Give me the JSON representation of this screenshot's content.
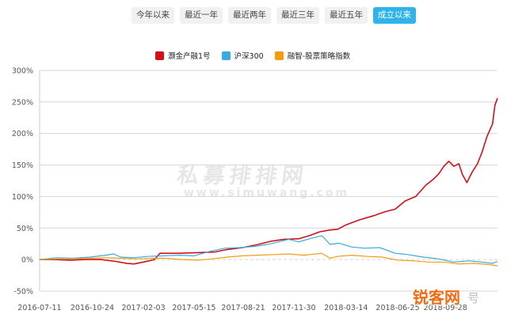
{
  "tabs": [
    {
      "label": "今年以来",
      "active": false
    },
    {
      "label": "最近一年",
      "active": false
    },
    {
      "label": "最近两年",
      "active": false
    },
    {
      "label": "最近三年",
      "active": false
    },
    {
      "label": "最近五年",
      "active": false
    },
    {
      "label": "成立以来",
      "active": true
    }
  ],
  "watermark": {
    "text": "私募排排网",
    "url": "www.simuwang.com"
  },
  "logo": {
    "text": "锐客网",
    "sub": "号"
  },
  "chart_data": {
    "type": "line",
    "ylim": [
      -50,
      300
    ],
    "yticks": [
      -50,
      0,
      50,
      100,
      150,
      200,
      250,
      300
    ],
    "ytick_labels": [
      "-50%",
      "0%",
      "50%",
      "100%",
      "150%",
      "200%",
      "250%",
      "300%"
    ],
    "xlim": [
      "2016-07-11",
      "2019-01-10"
    ],
    "xtick_labels": [
      "2016-07-11",
      "2016-10-24",
      "2017-02-03",
      "2017-05-15",
      "2017-08-21",
      "2017-11-30",
      "2018-03-14",
      "2018-06-25",
      "2018-09-28"
    ],
    "grid": true,
    "legend_position": "top",
    "series": [
      {
        "name": "灏金产融1号",
        "color": "#d0101b",
        "points": [
          [
            "2016-07-11",
            0
          ],
          [
            "2016-08-10",
            0
          ],
          [
            "2016-09-10",
            -1
          ],
          [
            "2016-10-10",
            0
          ],
          [
            "2016-11-10",
            0
          ],
          [
            "2016-12-10",
            -3
          ],
          [
            "2017-01-01",
            -6
          ],
          [
            "2017-01-15",
            -7
          ],
          [
            "2017-02-03",
            -4
          ],
          [
            "2017-02-25",
            0
          ],
          [
            "2017-03-08",
            10
          ],
          [
            "2017-04-15",
            10
          ],
          [
            "2017-05-20",
            11
          ],
          [
            "2017-06-25",
            12
          ],
          [
            "2017-07-20",
            16
          ],
          [
            "2017-08-20",
            19
          ],
          [
            "2017-09-20",
            24
          ],
          [
            "2017-10-15",
            29
          ],
          [
            "2017-11-10",
            32
          ],
          [
            "2017-12-10",
            33
          ],
          [
            "2017-12-31",
            38
          ],
          [
            "2018-01-20",
            44
          ],
          [
            "2018-02-10",
            47
          ],
          [
            "2018-02-25",
            48
          ],
          [
            "2018-03-14",
            55
          ],
          [
            "2018-04-10",
            63
          ],
          [
            "2018-05-10",
            70
          ],
          [
            "2018-05-31",
            76
          ],
          [
            "2018-06-20",
            80
          ],
          [
            "2018-07-10",
            93
          ],
          [
            "2018-07-31",
            100
          ],
          [
            "2018-08-20",
            118
          ],
          [
            "2018-09-05",
            128
          ],
          [
            "2018-09-15",
            136
          ],
          [
            "2018-09-25",
            148
          ],
          [
            "2018-10-05",
            156
          ],
          [
            "2018-10-15",
            148
          ],
          [
            "2018-10-25",
            152
          ],
          [
            "2018-11-01",
            135
          ],
          [
            "2018-11-10",
            122
          ],
          [
            "2018-11-20",
            138
          ],
          [
            "2018-12-01",
            152
          ],
          [
            "2018-12-10",
            170
          ],
          [
            "2018-12-20",
            195
          ],
          [
            "2018-12-31",
            215
          ],
          [
            "2019-01-05",
            245
          ],
          [
            "2019-01-10",
            256
          ]
        ]
      },
      {
        "name": "沪深300",
        "color": "#3aa9e0",
        "points": [
          [
            "2016-07-11",
            0
          ],
          [
            "2016-08-15",
            3
          ],
          [
            "2016-09-15",
            2
          ],
          [
            "2016-10-20",
            4
          ],
          [
            "2016-11-20",
            7
          ],
          [
            "2016-12-05",
            9
          ],
          [
            "2016-12-20",
            4
          ],
          [
            "2017-01-15",
            3
          ],
          [
            "2017-02-10",
            5
          ],
          [
            "2017-03-15",
            6
          ],
          [
            "2017-04-15",
            7
          ],
          [
            "2017-05-15",
            6
          ],
          [
            "2017-06-15",
            13
          ],
          [
            "2017-07-15",
            18
          ],
          [
            "2017-08-15",
            19
          ],
          [
            "2017-09-15",
            21
          ],
          [
            "2017-10-15",
            25
          ],
          [
            "2017-11-20",
            32
          ],
          [
            "2017-12-10",
            28
          ],
          [
            "2017-12-31",
            33
          ],
          [
            "2018-01-25",
            38
          ],
          [
            "2018-02-10",
            24
          ],
          [
            "2018-02-28",
            26
          ],
          [
            "2018-03-25",
            20
          ],
          [
            "2018-04-20",
            18
          ],
          [
            "2018-05-20",
            19
          ],
          [
            "2018-06-20",
            10
          ],
          [
            "2018-07-15",
            8
          ],
          [
            "2018-08-15",
            4
          ],
          [
            "2018-09-15",
            1
          ],
          [
            "2018-10-15",
            -4
          ],
          [
            "2018-11-15",
            -2
          ],
          [
            "2018-12-10",
            -4
          ],
          [
            "2018-12-31",
            -6
          ],
          [
            "2019-01-10",
            -3
          ]
        ]
      },
      {
        "name": "融智-股票策略指数",
        "color": "#f39c12",
        "points": [
          [
            "2016-07-11",
            0
          ],
          [
            "2016-08-15",
            1
          ],
          [
            "2016-09-15",
            1
          ],
          [
            "2016-10-20",
            2
          ],
          [
            "2016-11-20",
            3
          ],
          [
            "2016-12-20",
            2
          ],
          [
            "2017-01-20",
            1
          ],
          [
            "2017-02-20",
            2
          ],
          [
            "2017-03-20",
            2
          ],
          [
            "2017-04-20",
            0
          ],
          [
            "2017-05-20",
            -1
          ],
          [
            "2017-06-20",
            1
          ],
          [
            "2017-07-20",
            4
          ],
          [
            "2017-08-20",
            6
          ],
          [
            "2017-09-20",
            7
          ],
          [
            "2017-10-20",
            8
          ],
          [
            "2017-11-20",
            9
          ],
          [
            "2017-12-20",
            7
          ],
          [
            "2018-01-25",
            10
          ],
          [
            "2018-02-10",
            2
          ],
          [
            "2018-02-25",
            5
          ],
          [
            "2018-03-25",
            7
          ],
          [
            "2018-04-25",
            5
          ],
          [
            "2018-05-25",
            4
          ],
          [
            "2018-06-25",
            -1
          ],
          [
            "2018-07-25",
            -2
          ],
          [
            "2018-08-25",
            -4
          ],
          [
            "2018-09-25",
            -4
          ],
          [
            "2018-10-25",
            -7
          ],
          [
            "2018-11-25",
            -6
          ],
          [
            "2018-12-25",
            -8
          ],
          [
            "2019-01-10",
            -10
          ]
        ]
      }
    ]
  }
}
